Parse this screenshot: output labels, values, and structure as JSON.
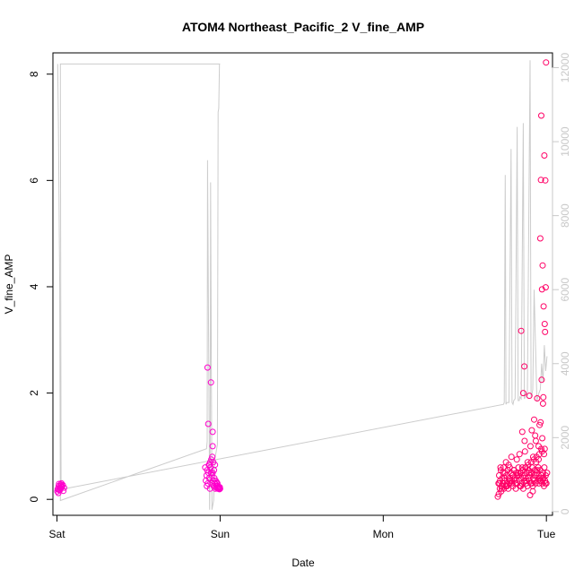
{
  "chart_data": {
    "type": "scatter",
    "title": "ATOM4 Northeast_Pacific_2 V_fine_AMP",
    "xlabel": "Date",
    "ylabel": "V_fine_AMP",
    "x_ticks": [
      {
        "value": 0,
        "label": "Sat"
      },
      {
        "value": 24,
        "label": "Sun"
      },
      {
        "value": 48,
        "label": "Mon"
      },
      {
        "value": 72,
        "label": "Tue"
      }
    ],
    "xlim": [
      -0.6,
      72.9
    ],
    "ylim": [
      -0.3,
      8.4
    ],
    "y_ticks": [
      0,
      2,
      4,
      6,
      8
    ],
    "y2lim": [
      -100,
      12400
    ],
    "y2_ticks": [
      0,
      2000,
      4000,
      6000,
      8000,
      10000,
      12000
    ],
    "grid": false,
    "colors": {
      "points": [
        "#ff00cc",
        "#ff0066"
      ],
      "secondary_line": "#cccccc",
      "axis": "#000000",
      "secondary_axis": "#c8c8c8"
    },
    "secondary_series": {
      "type": "line",
      "axis": "right",
      "x": [
        0.1,
        0.2,
        0.4,
        0.5,
        22.0,
        22.1,
        22.15,
        22.4,
        22.45,
        22.55,
        22.6,
        22.8,
        23.05,
        23.2,
        23.3,
        23.4,
        23.5,
        23.6,
        23.7,
        23.8,
        23.9,
        24.0,
        23.0,
        0.5,
        0.6,
        65.7,
        65.8,
        65.95,
        66.05,
        66.2,
        66.5,
        66.8,
        66.95,
        67.1,
        67.2,
        67.4,
        67.7,
        67.85,
        68.0,
        68.1,
        68.3,
        68.6,
        68.75,
        68.9,
        69.0,
        69.2,
        69.6,
        69.75,
        69.9,
        70.0,
        70.2,
        70.6,
        70.75,
        70.9,
        71.1,
        71.3,
        71.5,
        71.7,
        71.9,
        72.1
      ],
      "y": [
        12100,
        10500,
        6000,
        300,
        1700,
        1900,
        9500,
        2000,
        50,
        2000,
        8900,
        50,
        300,
        1400,
        1500,
        1600,
        1700,
        1800,
        10800,
        10900,
        12100,
        12100,
        12100,
        12100,
        600,
        2900,
        2950,
        9100,
        2900,
        2950,
        2950,
        9800,
        2950,
        2900,
        3000,
        3050,
        10400,
        3000,
        3000,
        3100,
        3050,
        10500,
        3050,
        3100,
        3200,
        3150,
        12200,
        3100,
        3200,
        3300,
        6000,
        3000,
        3100,
        3200,
        3300,
        4000,
        3500,
        4500,
        3800,
        4200
      ]
    },
    "series": [
      {
        "color": "#ff00cc",
        "x": [
          0.05,
          0.15,
          0.25,
          0.35,
          0.45,
          0.55,
          0.65,
          0.75,
          0.2,
          0.4,
          0.6,
          0.3,
          0.5,
          0.1,
          0.7,
          0.85,
          0.95,
          1.05
        ],
        "y": [
          0.15,
          0.2,
          0.25,
          0.18,
          0.22,
          0.28,
          0.3,
          0.24,
          0.12,
          0.17,
          0.26,
          0.29,
          0.21,
          0.19,
          0.23,
          0.27,
          0.16,
          0.22
        ]
      },
      {
        "color": "#ff00cc",
        "x": [
          21.8,
          21.9,
          22.0,
          22.05,
          22.1,
          22.2,
          22.3,
          22.35,
          22.4,
          22.5,
          22.55,
          22.6,
          22.7,
          22.75,
          22.8,
          22.85,
          22.9,
          22.95,
          23.0,
          23.05,
          23.1,
          23.15,
          23.2,
          23.25,
          23.3,
          23.35,
          23.4,
          23.45,
          23.5,
          23.55,
          23.6,
          23.65,
          23.7,
          23.75,
          23.8,
          23.85,
          23.9,
          23.95,
          24.0,
          22.15,
          22.25,
          22.45,
          22.65,
          22.9,
          22.65,
          22.9
        ],
        "y": [
          0.6,
          0.35,
          0.45,
          0.25,
          0.55,
          0.3,
          0.5,
          0.65,
          0.4,
          0.2,
          0.7,
          0.6,
          0.75,
          0.3,
          0.45,
          0.8,
          0.5,
          0.35,
          0.7,
          0.25,
          0.55,
          0.4,
          0.3,
          0.65,
          0.2,
          0.35,
          0.28,
          0.22,
          0.32,
          0.25,
          0.3,
          0.2,
          0.22,
          0.24,
          0.2,
          0.21,
          0.19,
          0.23,
          0.2,
          2.48,
          1.42,
          0.65,
          2.2,
          1.27,
          0.5,
          1.0
        ]
      },
      {
        "color": "#ff0066",
        "x": [
          64.85,
          64.95,
          65.05,
          65.15,
          65.2,
          65.3,
          65.4,
          65.5,
          65.6,
          65.7,
          65.8,
          65.9,
          66.0,
          66.1,
          66.2,
          66.3,
          66.4,
          66.5,
          66.6,
          66.7,
          66.8,
          66.9,
          67.0,
          67.1,
          67.2,
          67.3,
          67.4,
          67.5,
          67.6,
          67.7,
          67.8,
          67.9,
          68.0,
          68.1,
          68.2,
          68.3,
          68.4,
          68.5,
          68.6,
          68.7,
          68.8,
          68.9,
          69.0,
          69.1,
          69.2,
          69.3,
          69.4,
          69.5,
          69.6,
          69.7,
          69.8,
          69.9,
          70.0,
          70.1,
          70.2,
          70.3,
          70.4,
          70.5,
          70.6,
          70.7,
          70.8,
          70.9,
          71.0,
          71.1,
          71.2,
          71.3,
          71.4,
          71.5,
          71.6,
          71.7,
          71.8,
          71.9,
          72.0,
          72.1,
          65.0,
          65.35,
          65.75,
          66.15,
          66.55,
          66.95,
          67.35,
          67.75,
          68.15,
          68.55,
          68.95,
          69.35,
          69.75,
          70.15,
          70.55,
          70.95,
          71.35,
          71.75,
          65.1,
          65.45,
          65.85,
          66.25,
          66.65,
          67.05,
          67.45,
          67.85,
          68.25,
          68.65,
          69.05,
          69.45,
          69.85,
          70.25,
          70.65,
          71.05,
          71.45,
          71.85,
          65.25,
          65.65,
          66.05,
          66.45,
          66.85,
          67.25,
          67.65,
          68.05,
          68.45,
          68.85,
          69.25,
          69.65,
          70.05,
          70.45,
          70.85,
          71.25,
          71.65,
          68.3,
          68.45,
          68.6,
          68.75,
          68.8,
          69.5,
          69.6,
          69.85,
          70.0,
          70.2,
          70.35,
          70.5,
          70.65,
          70.85,
          71.0,
          71.1,
          71.15,
          71.2,
          71.25,
          71.3,
          71.35,
          71.4,
          71.45,
          71.5,
          71.55,
          71.6,
          71.65,
          71.7,
          71.75,
          71.8,
          71.85,
          71.9,
          71.95
        ],
        "y": [
          0.05,
          0.3,
          0.45,
          0.2,
          0.35,
          0.55,
          0.25,
          0.4,
          0.3,
          0.6,
          0.35,
          0.5,
          0.25,
          0.45,
          0.3,
          0.55,
          0.2,
          0.4,
          0.6,
          0.35,
          0.5,
          0.3,
          0.45,
          0.25,
          0.55,
          0.35,
          0.4,
          0.2,
          0.5,
          0.3,
          0.45,
          0.6,
          0.35,
          0.25,
          0.5,
          0.4,
          0.3,
          0.55,
          0.2,
          0.45,
          0.35,
          0.6,
          0.3,
          0.5,
          0.25,
          0.4,
          0.55,
          0.35,
          0.45,
          0.3,
          0.5,
          0.6,
          0.25,
          0.4,
          0.35,
          0.55,
          0.3,
          0.45,
          0.5,
          0.35,
          0.6,
          0.3,
          0.4,
          0.55,
          0.35,
          0.45,
          0.3,
          0.5,
          0.4,
          0.6,
          0.35,
          0.45,
          0.3,
          0.5,
          0.1,
          0.15,
          0.2,
          0.25,
          0.3,
          0.35,
          0.4,
          0.45,
          0.5,
          0.55,
          0.6,
          0.65,
          0.7,
          0.75,
          0.8,
          0.85,
          0.9,
          0.95,
          0.3,
          0.2,
          0.4,
          0.25,
          0.35,
          0.45,
          0.3,
          0.5,
          0.25,
          0.4,
          0.35,
          0.5,
          0.3,
          0.45,
          0.55,
          0.35,
          0.4,
          0.3,
          0.6,
          0.5,
          0.7,
          0.65,
          0.8,
          0.55,
          0.75,
          0.85,
          0.6,
          0.9,
          0.7,
          1.0,
          0.8,
          1.1,
          0.75,
          0.95,
          0.85,
          3.17,
          1.27,
          2.0,
          2.5,
          1.1,
          1.95,
          0.08,
          1.3,
          0.15,
          1.5,
          1.2,
          0.7,
          1.9,
          1.0,
          1.4,
          4.91,
          1.45,
          6.01,
          7.22,
          2.25,
          3.95,
          1.15,
          4.4,
          1.8,
          1.92,
          3.63,
          0.25,
          6.47,
          3.3,
          3.15,
          6.0,
          3.99,
          8.22
        ]
      }
    ]
  }
}
